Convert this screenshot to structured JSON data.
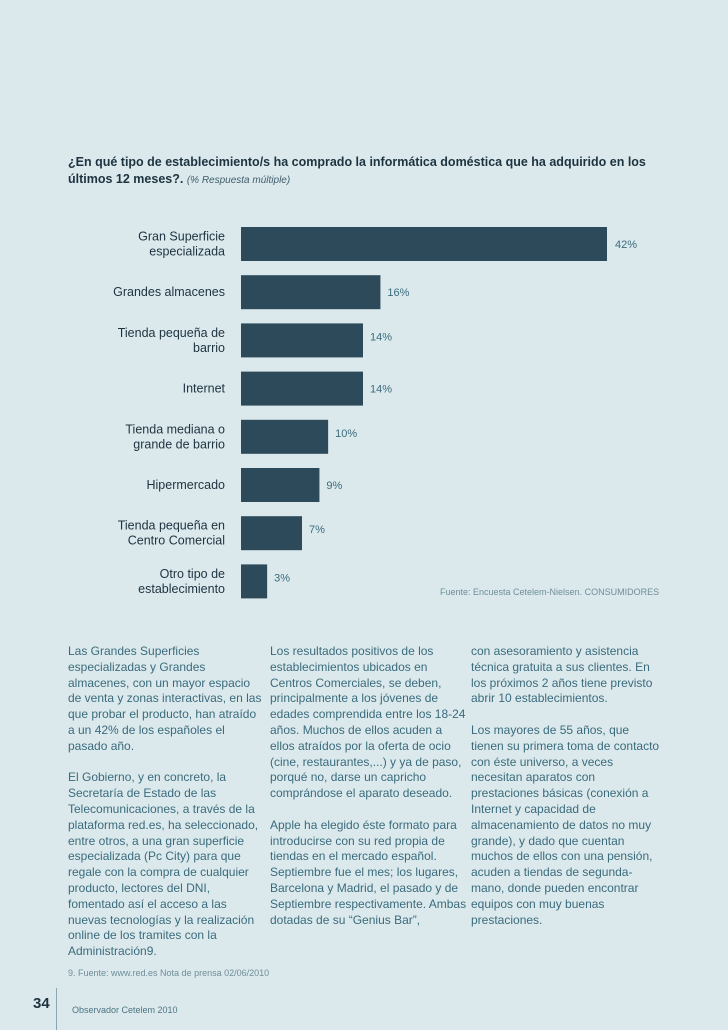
{
  "question": {
    "text": "¿En qué tipo de establecimiento/s ha comprado la informática doméstica que ha adquirido en los últimos 12 meses?.",
    "note": "(% Respuesta múltiple)"
  },
  "chart_data": {
    "type": "bar",
    "orientation": "horizontal",
    "categories": [
      [
        "Gran Superficie",
        "especializada"
      ],
      [
        "Grandes almacenes"
      ],
      [
        "Tienda pequeña de",
        "barrio"
      ],
      [
        "Internet"
      ],
      [
        "Tienda mediana o",
        "grande de barrio"
      ],
      [
        "Hipermercado"
      ],
      [
        "Tienda pequeña en",
        "Centro Comercial"
      ],
      [
        "Otro tipo de",
        "establecimiento"
      ]
    ],
    "values": [
      42,
      16,
      14,
      14,
      10,
      9,
      7,
      3
    ],
    "value_labels": [
      "42%",
      "16%",
      "14%",
      "14%",
      "10%",
      "9%",
      "7%",
      "3%"
    ],
    "xlim": [
      0,
      42
    ],
    "bar_color": "#2c4a5a",
    "grid": false
  },
  "source": "Fuente: Encuesta Cetelem-Nielsen. CONSUMIDORES",
  "columns": {
    "col1": [
      "Las Grandes Superficies especializadas y Grandes almacenes, con un mayor espacio de venta y zonas interactivas, en las que probar el producto, han atraído a un 42% de los españoles el pasado año.",
      "El Gobierno, y en concreto, la Secretaría de Estado de las Telecomunicaciones, a través de la plataforma red.es, ha seleccionado, entre otros, a una gran superficie especializada (Pc City) para que regale con la compra de cualquier producto, lectores del DNI, fomentado así el acceso a las nuevas tecnologías y la realización online de los tramites con la Administración9."
    ],
    "col2": [
      "Los resultados positivos de los establecimientos ubicados en Centros Comerciales, se deben, principalmente a los jóvenes de edades comprendida entre los 18-24 años. Muchos de ellos acuden a ellos atraídos por la oferta de ocio (cine, restaurantes,...) y ya de paso, porqué no, darse un capricho comprándose el aparato deseado.",
      "Apple ha elegido éste formato para introducirse con su red propia de tiendas en el mercado español. Septiembre fue el mes; los lugares, Barcelona y Madrid, el pasado y de Septiembre respectivamente. Ambas dotadas de su “Genius Bar”,"
    ],
    "col3": [
      "con asesoramiento y asistencia técnica gratuita a sus clientes. En los próximos 2 años tiene previsto abrir 10 establecimientos.",
      "Los mayores de 55 años, que tienen su primera toma de contacto con éste universo, a veces necesitan aparatos con prestaciones básicas (conexión a Internet y capacidad de almacenamiento de datos no muy grande), y dado que cuentan muchos de ellos con una pensión, acuden a tiendas de segunda-mano, donde pueden encontrar equipos con muy buenas prestaciones."
    ]
  },
  "footnote": "9. Fuente: www.red.es Nota de prensa 02/06/2010",
  "page_number": "34",
  "footer_title": "Observador Cetelem 2010"
}
